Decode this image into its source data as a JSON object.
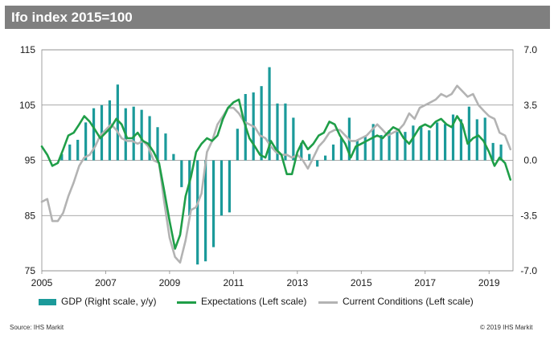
{
  "header": {
    "title": "Ifo index 2015=100"
  },
  "footer": {
    "source": "Source: IHS Markit",
    "copyright": "© 2019 IHS Markit"
  },
  "legend": [
    {
      "label": "GDP (Right scale, y/y)",
      "color": "#1b9a9a",
      "kind": "bar"
    },
    {
      "label": "Expectations (Left scale)",
      "color": "#1f9e48",
      "kind": "line"
    },
    {
      "label": "Current Conditions (Left scale)",
      "color": "#b3b3b3",
      "kind": "line"
    }
  ],
  "chart_data": {
    "type": "bar+line",
    "title": "Ifo index 2015=100",
    "x_ticks": [
      "2005",
      "2007",
      "2009",
      "2011",
      "2013",
      "2015",
      "2017",
      "2019"
    ],
    "xlim": [
      2005.0,
      2019.75
    ],
    "left_axis": {
      "ylim": [
        75,
        115
      ],
      "ticks": [
        "75",
        "85",
        "95",
        "105",
        "115"
      ]
    },
    "right_axis": {
      "ylim": [
        -7.0,
        7.0
      ],
      "ticks": [
        "-7.0",
        "-3.5",
        "0.0",
        "3.5",
        "7.0"
      ]
    },
    "grid": "horizontal",
    "colors": {
      "gdp": "#1b9a9a",
      "expectations": "#1f9e48",
      "current": "#b3b3b3"
    },
    "series": [
      {
        "name": "GDP (Right scale, y/y)",
        "axis": "right",
        "type": "bar",
        "x": [
          2005.625,
          2005.875,
          2006.125,
          2006.375,
          2006.625,
          2006.875,
          2007.125,
          2007.375,
          2007.625,
          2007.875,
          2008.125,
          2008.375,
          2008.625,
          2008.875,
          2009.125,
          2009.375,
          2009.625,
          2009.875,
          2010.125,
          2010.375,
          2010.625,
          2010.875,
          2011.125,
          2011.375,
          2011.625,
          2011.875,
          2012.125,
          2012.375,
          2012.625,
          2012.875,
          2013.125,
          2013.375,
          2013.625,
          2013.875,
          2014.125,
          2014.375,
          2014.625,
          2014.875,
          2015.125,
          2015.375,
          2015.625,
          2015.875,
          2016.125,
          2016.375,
          2016.625,
          2016.875,
          2017.125,
          2017.375,
          2017.625,
          2017.875,
          2018.125,
          2018.375,
          2018.625,
          2018.875,
          2019.125,
          2019.375
        ],
        "values": [
          0.4,
          1.0,
          1.3,
          2.4,
          3.3,
          3.5,
          3.8,
          4.8,
          3.3,
          3.4,
          3.2,
          2.8,
          2.1,
          1.7,
          0.4,
          -1.7,
          -3.5,
          -6.6,
          -6.4,
          -5.5,
          -3.5,
          -3.3,
          2.0,
          4.2,
          4.3,
          4.7,
          5.9,
          3.6,
          3.6,
          2.7,
          1.1,
          0.4,
          -0.4,
          0.3,
          1.0,
          1.4,
          2.7,
          1.3,
          1.5,
          2.3,
          1.6,
          1.9,
          1.8,
          1.8,
          2.2,
          2.1,
          1.9,
          2.4,
          2.3,
          2.9,
          2.6,
          3.4,
          2.6,
          2.7,
          1.1,
          1.0
        ]
      },
      {
        "name": "Expectations (Left scale)",
        "axis": "left",
        "type": "line",
        "x": [
          2005.0,
          2005.17,
          2005.33,
          2005.5,
          2005.67,
          2005.83,
          2006.0,
          2006.17,
          2006.33,
          2006.5,
          2006.67,
          2006.83,
          2007.0,
          2007.17,
          2007.33,
          2007.5,
          2007.67,
          2007.83,
          2008.0,
          2008.17,
          2008.33,
          2008.5,
          2008.67,
          2008.83,
          2009.0,
          2009.17,
          2009.33,
          2009.5,
          2009.67,
          2009.83,
          2010.0,
          2010.17,
          2010.33,
          2010.5,
          2010.67,
          2010.83,
          2011.0,
          2011.17,
          2011.33,
          2011.5,
          2011.67,
          2011.83,
          2012.0,
          2012.17,
          2012.33,
          2012.5,
          2012.67,
          2012.83,
          2013.0,
          2013.17,
          2013.33,
          2013.5,
          2013.67,
          2013.83,
          2014.0,
          2014.17,
          2014.33,
          2014.5,
          2014.67,
          2014.83,
          2015.0,
          2015.17,
          2015.33,
          2015.5,
          2015.67,
          2015.83,
          2016.0,
          2016.17,
          2016.33,
          2016.5,
          2016.67,
          2016.83,
          2017.0,
          2017.17,
          2017.33,
          2017.5,
          2017.67,
          2017.83,
          2018.0,
          2018.17,
          2018.33,
          2018.5,
          2018.67,
          2018.83,
          2019.0,
          2019.17,
          2019.33,
          2019.5,
          2019.67
        ],
        "values": [
          97.5,
          96.0,
          94.0,
          94.5,
          97.0,
          99.5,
          100.0,
          101.5,
          103.0,
          102.0,
          100.5,
          99.0,
          100.0,
          101.0,
          102.5,
          101.5,
          99.0,
          99.0,
          100.0,
          98.5,
          98.0,
          96.5,
          94.5,
          89.5,
          84.0,
          79.0,
          81.5,
          88.5,
          92.0,
          96.5,
          98.0,
          99.0,
          98.5,
          99.5,
          102.5,
          104.5,
          105.5,
          106.0,
          102.0,
          99.0,
          97.5,
          96.0,
          95.5,
          98.5,
          97.0,
          96.0,
          92.5,
          92.5,
          96.5,
          98.5,
          97.0,
          98.0,
          99.5,
          100.0,
          102.0,
          101.5,
          99.5,
          98.0,
          95.5,
          97.5,
          98.0,
          98.5,
          99.0,
          99.5,
          99.0,
          100.0,
          101.0,
          100.5,
          99.0,
          98.0,
          99.5,
          101.0,
          101.5,
          101.0,
          102.0,
          102.5,
          101.5,
          101.0,
          103.0,
          101.5,
          98.0,
          99.0,
          99.5,
          98.5,
          96.5,
          94.0,
          95.5,
          94.5,
          91.5
        ]
      },
      {
        "name": "Current Conditions (Left scale)",
        "axis": "left",
        "type": "line",
        "x": [
          2005.0,
          2005.17,
          2005.33,
          2005.5,
          2005.67,
          2005.83,
          2006.0,
          2006.17,
          2006.33,
          2006.5,
          2006.67,
          2006.83,
          2007.0,
          2007.17,
          2007.33,
          2007.5,
          2007.67,
          2007.83,
          2008.0,
          2008.17,
          2008.33,
          2008.5,
          2008.67,
          2008.83,
          2009.0,
          2009.17,
          2009.33,
          2009.5,
          2009.67,
          2009.83,
          2010.0,
          2010.17,
          2010.33,
          2010.5,
          2010.67,
          2010.83,
          2011.0,
          2011.17,
          2011.33,
          2011.5,
          2011.67,
          2011.83,
          2012.0,
          2012.17,
          2012.33,
          2012.5,
          2012.67,
          2012.83,
          2013.0,
          2013.17,
          2013.33,
          2013.5,
          2013.67,
          2013.83,
          2014.0,
          2014.17,
          2014.33,
          2014.5,
          2014.67,
          2014.83,
          2015.0,
          2015.17,
          2015.33,
          2015.5,
          2015.67,
          2015.83,
          2016.0,
          2016.17,
          2016.33,
          2016.5,
          2016.67,
          2016.83,
          2017.0,
          2017.17,
          2017.33,
          2017.5,
          2017.67,
          2017.83,
          2018.0,
          2018.17,
          2018.33,
          2018.5,
          2018.67,
          2018.83,
          2019.0,
          2019.17,
          2019.33,
          2019.5,
          2019.67
        ],
        "values": [
          87.5,
          88.0,
          84.0,
          84.0,
          85.5,
          88.5,
          91.0,
          94.0,
          95.5,
          96.0,
          97.5,
          99.5,
          100.5,
          101.5,
          100.5,
          99.0,
          98.5,
          98.5,
          98.0,
          98.5,
          97.5,
          95.0,
          94.5,
          87.5,
          81.0,
          77.5,
          76.5,
          80.5,
          86.0,
          86.5,
          89.0,
          96.5,
          98.5,
          101.5,
          103.0,
          104.5,
          104.5,
          103.5,
          102.0,
          101.5,
          101.0,
          99.5,
          99.0,
          97.5,
          96.5,
          96.0,
          96.0,
          95.5,
          96.0,
          95.0,
          93.5,
          95.5,
          97.5,
          98.5,
          100.0,
          100.5,
          100.5,
          99.5,
          98.5,
          98.5,
          99.0,
          99.5,
          100.5,
          101.5,
          100.5,
          99.5,
          100.0,
          100.5,
          101.5,
          103.5,
          102.5,
          104.5,
          105.0,
          105.5,
          106.0,
          107.0,
          106.5,
          107.0,
          108.5,
          107.5,
          106.5,
          107.0,
          105.0,
          104.0,
          103.0,
          102.5,
          100.0,
          99.5,
          97.0
        ]
      }
    ]
  }
}
